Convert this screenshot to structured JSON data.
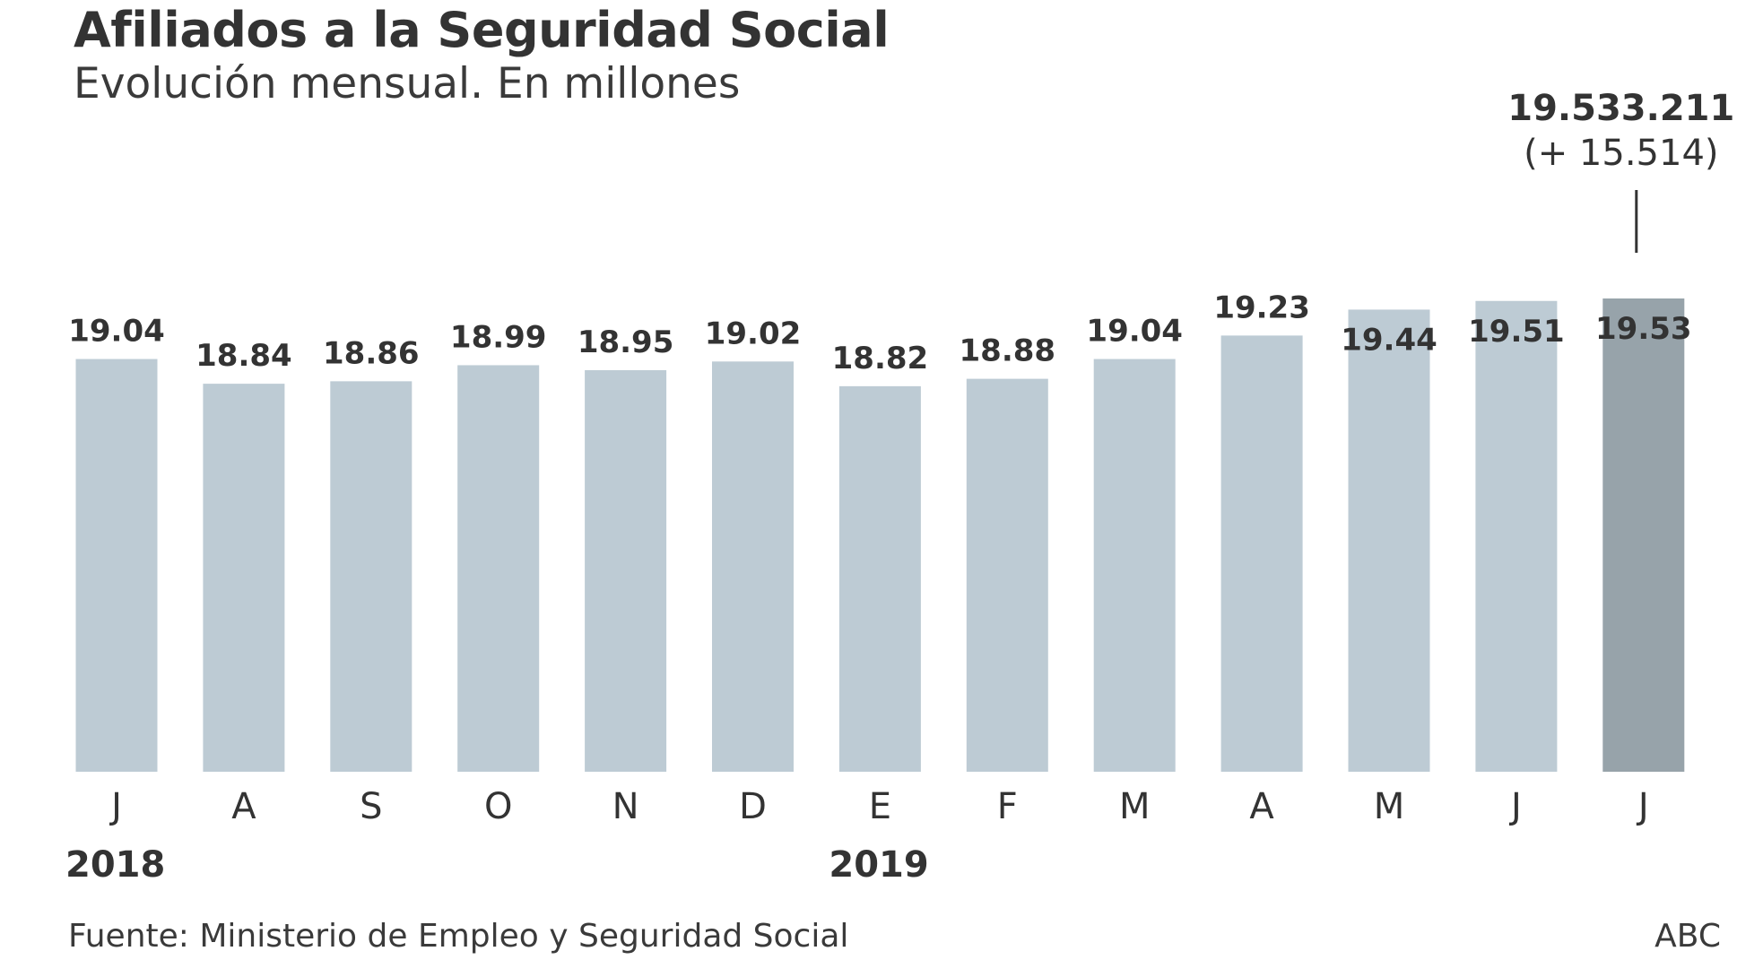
{
  "colors": {
    "bar": "#bdcbd4",
    "bar_highlight": "#97a3aa",
    "text": "#333333"
  },
  "source": "Fuente: Ministerio de Empleo y Seguridad Social",
  "credit": "ABC",
  "chart_data": {
    "type": "bar",
    "title": "Afiliados a la Seguridad Social",
    "subtitle": "Evolución mensual. En millones",
    "categories": [
      "J",
      "A",
      "S",
      "O",
      "N",
      "D",
      "E",
      "F",
      "M",
      "A",
      "M",
      "J",
      "J"
    ],
    "values": [
      19.04,
      18.84,
      18.86,
      18.99,
      18.95,
      19.02,
      18.82,
      18.88,
      19.04,
      19.23,
      19.44,
      19.51,
      19.53
    ],
    "value_labels": [
      "19.04",
      "18.84",
      "18.86",
      "18.99",
      "18.95",
      "19.02",
      "18.82",
      "18.88",
      "19.04",
      "19.23",
      "19.44",
      "19.51",
      "19.53"
    ],
    "year_labels": [
      {
        "category_index": 0,
        "label": "2018"
      },
      {
        "category_index": 6,
        "label": "2019"
      }
    ],
    "highlight_index": 12,
    "annotation": {
      "category_index": 12,
      "value": "19.533.211",
      "change": "(+ 15.514)"
    },
    "ylim": [
      15.7,
      19.53
    ],
    "xlabel": "",
    "ylabel": "",
    "grid": false,
    "legend": "none"
  }
}
